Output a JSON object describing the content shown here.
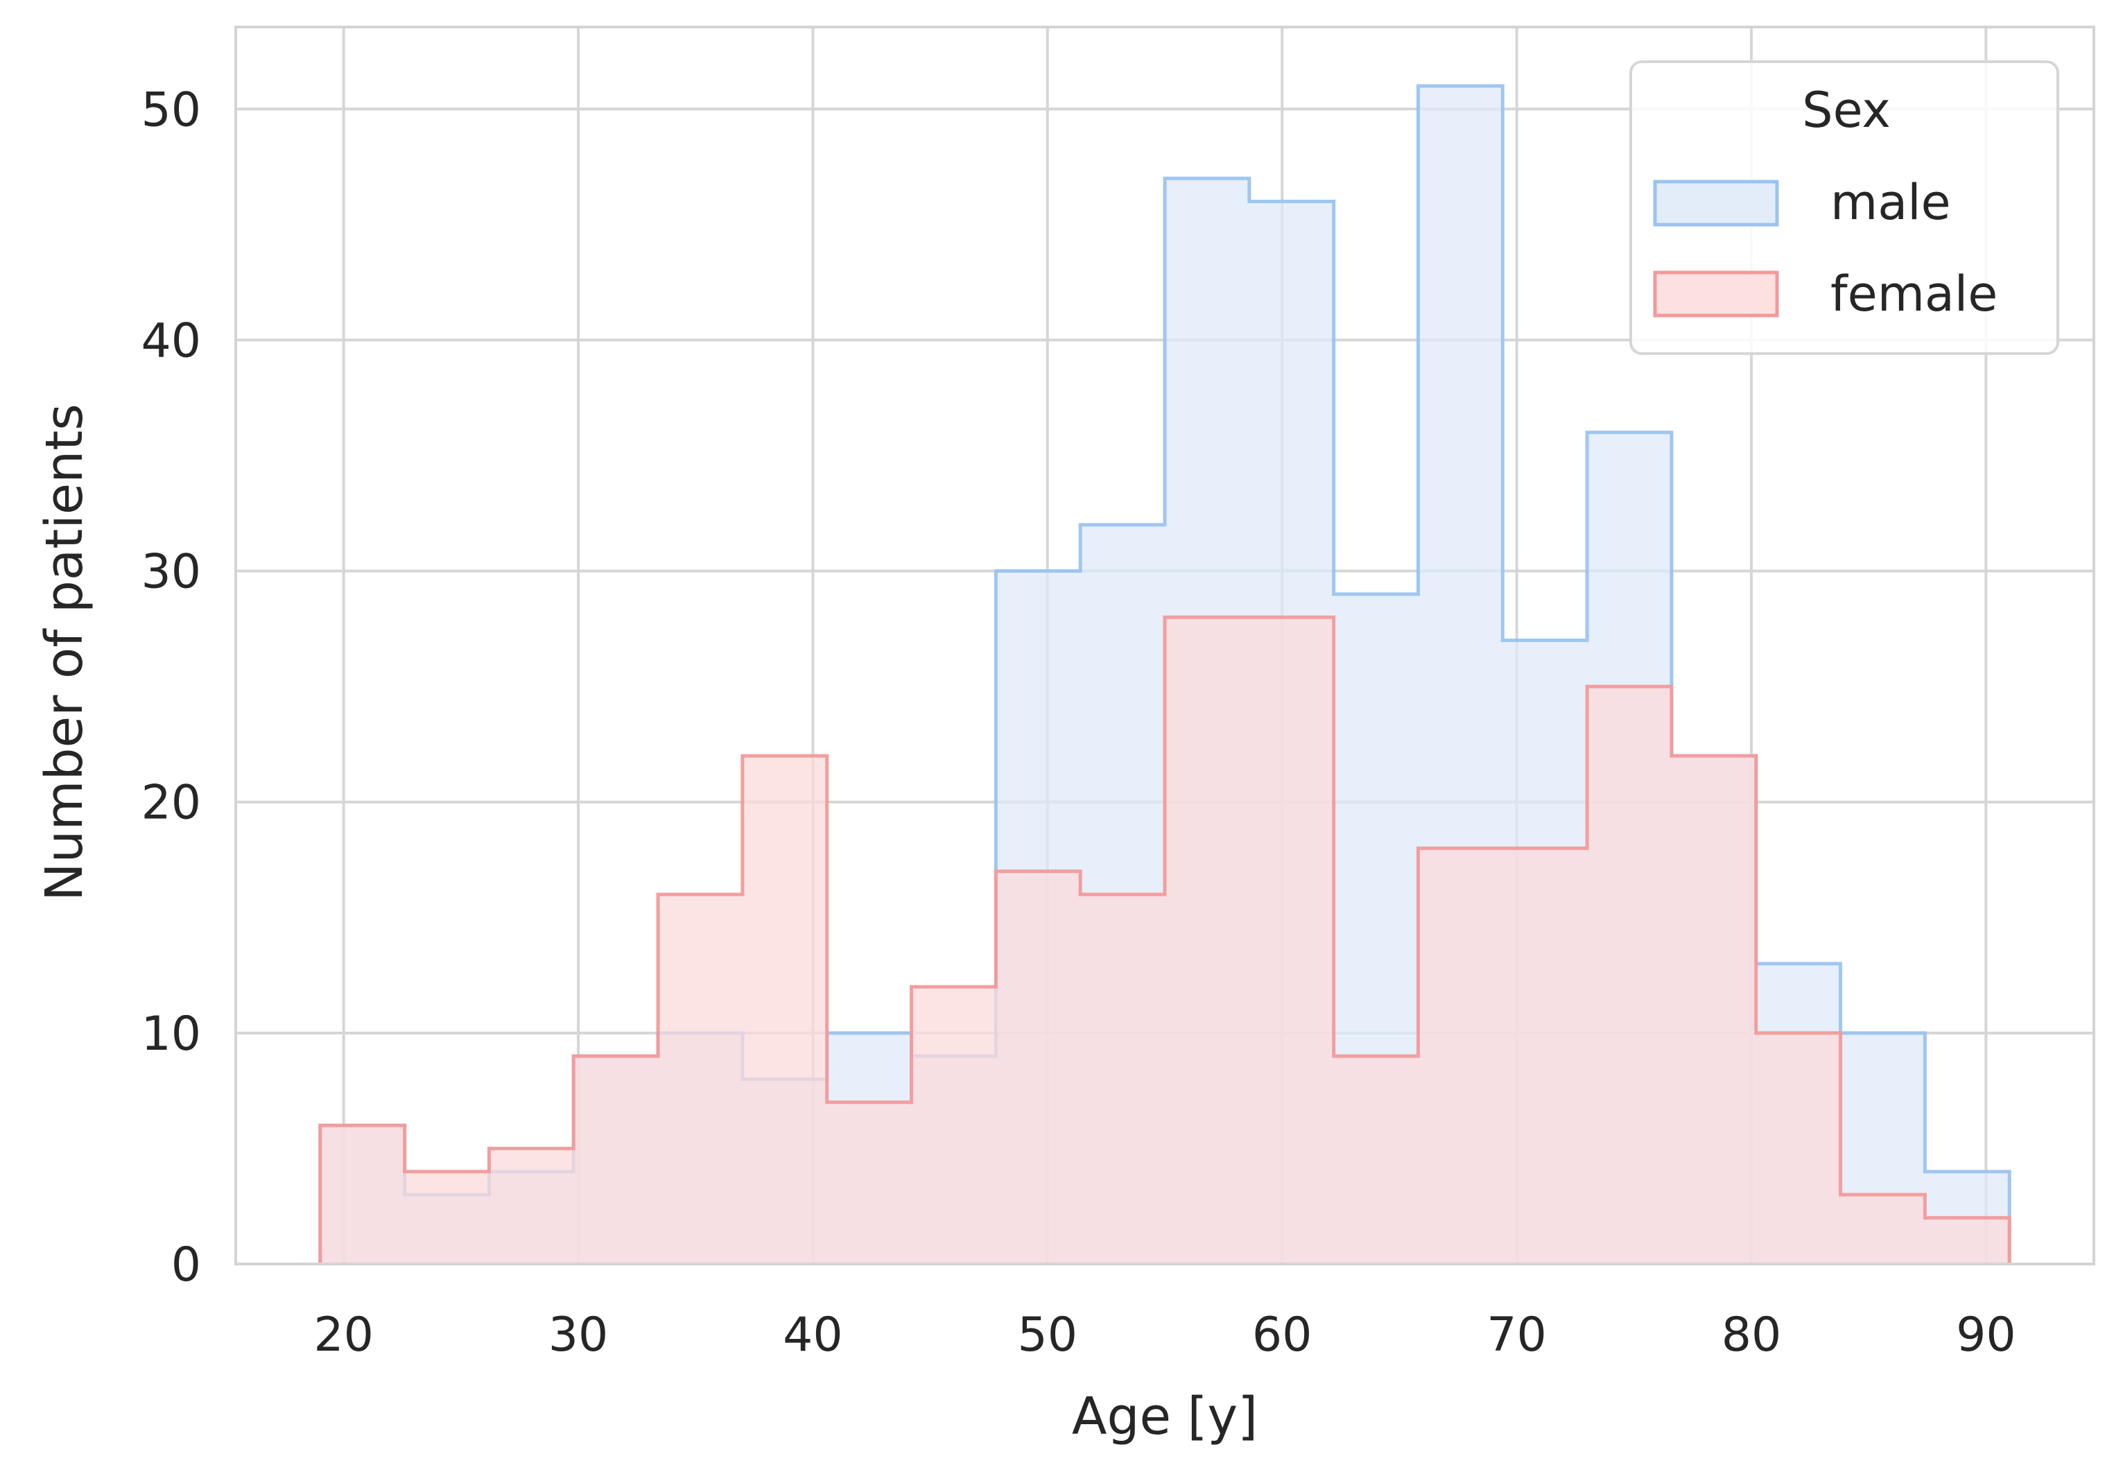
{
  "chart_data": {
    "type": "histogram",
    "title": "",
    "xlabel": "Age [y]",
    "ylabel": "Number of patients",
    "xlim": [
      15.4,
      94.6
    ],
    "ylim": [
      0,
      53.55
    ],
    "xticks": [
      20,
      30,
      40,
      50,
      60,
      70,
      80,
      90
    ],
    "yticks": [
      0,
      10,
      20,
      30,
      40,
      50
    ],
    "grid": true,
    "bin_edges": [
      19.0,
      22.6,
      26.2,
      29.8,
      33.4,
      37.0,
      40.6,
      44.2,
      47.8,
      51.4,
      55.0,
      58.6,
      62.2,
      65.8,
      69.4,
      73.0,
      76.6,
      80.2,
      83.8,
      87.4,
      91.0
    ],
    "series": [
      {
        "name": "male",
        "edge_color": "#9CC3F0",
        "fill_color": "#DCE9F8",
        "values": [
          6,
          3,
          4,
          9,
          10,
          8,
          10,
          9,
          30,
          32,
          47,
          46,
          29,
          51,
          27,
          36,
          22,
          13,
          10,
          4
        ]
      },
      {
        "name": "female",
        "edge_color": "#F29A9A",
        "fill_color": "#FCDADA",
        "values": [
          6,
          4,
          5,
          9,
          16,
          22,
          7,
          12,
          17,
          16,
          28,
          28,
          9,
          18,
          18,
          25,
          22,
          10,
          3,
          2
        ]
      }
    ],
    "legend": {
      "title": "Sex",
      "position": "upper right",
      "entries": [
        "male",
        "female"
      ]
    }
  },
  "legend": {
    "title": "Sex",
    "male_label": "male",
    "female_label": "female"
  },
  "axes": {
    "xlabel": "Age [y]",
    "ylabel": "Number of patients"
  }
}
